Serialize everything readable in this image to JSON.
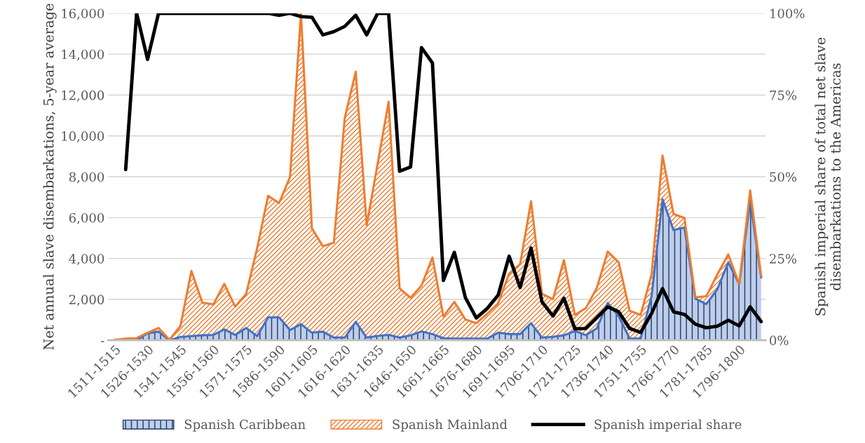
{
  "chart_data": {
    "type": "area",
    "stacked": true,
    "categories": [
      "1511-1515",
      null,
      null,
      "1526-1530",
      null,
      null,
      "1541-1545",
      null,
      null,
      "1556-1560",
      null,
      null,
      "1571-1575",
      null,
      null,
      "1586-1590",
      null,
      null,
      "1601-1605",
      null,
      null,
      "1616-1620",
      null,
      null,
      "1631-1635",
      null,
      null,
      "1646-1650",
      null,
      null,
      "1661-1665",
      null,
      null,
      "1676-1680",
      null,
      null,
      "1691-1695",
      null,
      null,
      "1706-1710",
      null,
      null,
      "1721-1725",
      null,
      null,
      "1736-1740",
      null,
      null,
      "1751-1755",
      null,
      null,
      "1766-1770",
      null,
      null,
      "1781-1785",
      null,
      null,
      "1796-1800",
      null,
      null
    ],
    "ylabel": "Net annual slave disembarkations, 5-year average",
    "y2label": "Spanish imperial share of total net slave disembarkations to the Americas",
    "ylim": [
      0,
      16000
    ],
    "yticks": [
      {
        "value": 0,
        "label": "-"
      },
      {
        "value": 2000,
        "label": "2,000"
      },
      {
        "value": 4000,
        "label": "4,000"
      },
      {
        "value": 6000,
        "label": "6,000"
      },
      {
        "value": 8000,
        "label": "8,000"
      },
      {
        "value": 10000,
        "label": "10,000"
      },
      {
        "value": 12000,
        "label": "12,000"
      },
      {
        "value": 14000,
        "label": "14,000"
      },
      {
        "value": 16000,
        "label": "16,000"
      }
    ],
    "y2lim": [
      0,
      100
    ],
    "y2ticks": [
      {
        "value": 0,
        "label": "0%"
      },
      {
        "value": 25,
        "label": "25%"
      },
      {
        "value": 50,
        "label": "50%"
      },
      {
        "value": 75,
        "label": "75%"
      },
      {
        "value": 100,
        "label": "100%"
      }
    ],
    "grid": "y",
    "legend": "bottom",
    "series": [
      {
        "name": "Spanish Caribbean",
        "color": "#4472c4",
        "values": [
          0,
          0,
          0,
          340,
          420,
          0,
          160,
          200,
          240,
          260,
          530,
          260,
          600,
          200,
          1120,
          1120,
          500,
          790,
          370,
          420,
          130,
          130,
          900,
          130,
          210,
          260,
          130,
          240,
          430,
          300,
          100,
          80,
          80,
          80,
          80,
          370,
          300,
          300,
          830,
          130,
          170,
          240,
          450,
          250,
          580,
          1830,
          1170,
          80,
          80,
          2160,
          6900,
          5390,
          5520,
          2030,
          1770,
          2490,
          3810,
          2750,
          6840,
          3080
        ]
      },
      {
        "name": "Spanish Mainland",
        "color": "#ed7d31",
        "values": [
          20,
          80,
          100,
          30,
          180,
          20,
          540,
          3190,
          1600,
          1490,
          2230,
          1380,
          1670,
          4300,
          5950,
          5590,
          7490,
          15210,
          5100,
          4180,
          4640,
          10750,
          12240,
          5490,
          8440,
          11410,
          2410,
          1840,
          2240,
          3750,
          1060,
          1800,
          940,
          750,
          1210,
          1440,
          2960,
          3420,
          5970,
          2140,
          1840,
          3680,
          790,
          1320,
          1980,
          2510,
          2640,
          1360,
          1160,
          1060,
          2140,
          790,
          460,
          70,
          390,
          730,
          390,
          0,
          490,
          70
        ]
      },
      {
        "name": "Spanish imperial share",
        "type": "line",
        "axis": "y2",
        "color": "#000000",
        "values": [
          null,
          52.2,
          100,
          85.9,
          100,
          100,
          100,
          100,
          100,
          100,
          100,
          100,
          100,
          100,
          100,
          99.4,
          100,
          99,
          98.8,
          93.4,
          94.4,
          96,
          99.4,
          93.4,
          100,
          100,
          51.7,
          53,
          89.5,
          84.8,
          18.3,
          26.9,
          13.1,
          6.8,
          9.7,
          13.8,
          25.7,
          16.1,
          28.2,
          11.7,
          7.4,
          12.8,
          3.5,
          3.6,
          6.9,
          10.2,
          8.7,
          3.6,
          2.4,
          8.2,
          15.8,
          8.7,
          7.9,
          4.9,
          3.8,
          4.3,
          6.1,
          4.4,
          10.2,
          5.7
        ]
      }
    ]
  }
}
